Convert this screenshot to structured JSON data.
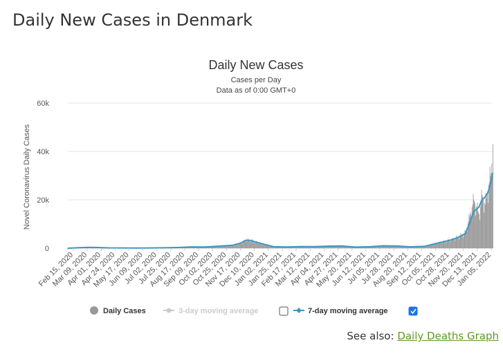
{
  "page": {
    "heading": "Daily New Cases in Denmark",
    "see_also_label": "See also:",
    "see_also_link": "Daily Deaths Graph",
    "link_color": "#5e9a1f"
  },
  "chart_data": {
    "type": "bar",
    "title": "Daily New Cases",
    "subtitle_1": "Cases per Day",
    "subtitle_2": "Data as of 0:00 GMT+0",
    "ylabel": "Novel Coronavirus Daily Cases",
    "xlabel": "",
    "ylim": [
      0,
      60000
    ],
    "y_ticks": [
      0,
      20000,
      40000,
      60000
    ],
    "y_tick_labels": [
      "0",
      "20k",
      "40k",
      "60k"
    ],
    "x_start": "2020-02-15",
    "x_end": "2022-01-28",
    "x_tick_labels": [
      "Feb 15, 2020",
      "Mar 09, 2020",
      "Apr 01, 2020",
      "Apr 24, 2020",
      "May 17, 2020",
      "Jun 09, 2020",
      "Jul 02, 2020",
      "Jul 25, 2020",
      "Aug 17, 2020",
      "Sep 09, 2020",
      "Oct 02, 2020",
      "Oct 25, 2020",
      "Nov 17, 2020",
      "Dec 10, 2020",
      "Jan 02, 2021",
      "Jan 25, 2021",
      "Feb 17, 2021",
      "Mar 12, 2021",
      "Apr 04, 2021",
      "Apr 27, 2021",
      "May 20, 2021",
      "Jun 12, 2021",
      "Jul 05, 2021",
      "Jul 28, 2021",
      "Aug 20, 2021",
      "Sep 12, 2021",
      "Oct 05, 2021",
      "Oct 28, 2021",
      "Nov 20, 2021",
      "Dec 13, 2021",
      "Jan 05, 2022"
    ],
    "grid": true,
    "legend_position": "bottom",
    "legend": [
      {
        "name": "Daily Cases",
        "color": "#999999",
        "marker": "circle",
        "active": true
      },
      {
        "name": "3-day moving average",
        "color": "#cccccc",
        "marker": "line-dot",
        "active": false,
        "checked": false
      },
      {
        "name": "7-day moving average",
        "color": "#3d96c3",
        "marker": "line-diamond",
        "active": true,
        "checked": true
      }
    ],
    "series": [
      {
        "name": "Daily Cases",
        "color": "#999999",
        "x": [
          "2020-02-15",
          "2020-03-09",
          "2020-03-20",
          "2020-04-01",
          "2020-04-24",
          "2020-05-17",
          "2020-06-09",
          "2020-07-02",
          "2020-07-25",
          "2020-08-17",
          "2020-09-09",
          "2020-10-02",
          "2020-10-25",
          "2020-11-17",
          "2020-12-01",
          "2020-12-10",
          "2020-12-18",
          "2021-01-02",
          "2021-01-25",
          "2021-02-17",
          "2021-03-12",
          "2021-04-04",
          "2021-04-27",
          "2021-05-20",
          "2021-06-12",
          "2021-07-05",
          "2021-07-28",
          "2021-08-20",
          "2021-09-12",
          "2021-10-05",
          "2021-10-28",
          "2021-11-20",
          "2021-12-01",
          "2021-12-13",
          "2021-12-20",
          "2021-12-27",
          "2022-01-05",
          "2022-01-10",
          "2022-01-15",
          "2022-01-20",
          "2022-01-25",
          "2022-01-28"
        ],
        "values": [
          0,
          300,
          400,
          300,
          150,
          120,
          60,
          100,
          180,
          300,
          600,
          450,
          900,
          1200,
          2000,
          3500,
          3400,
          2000,
          600,
          450,
          750,
          650,
          900,
          1000,
          400,
          600,
          1100,
          1000,
          550,
          800,
          2200,
          3600,
          4800,
          6500,
          13000,
          20000,
          14000,
          22000,
          18000,
          25000,
          31000,
          43000
        ]
      },
      {
        "name": "7-day moving average",
        "color": "#3d96c3",
        "x": [
          "2020-02-15",
          "2020-03-09",
          "2020-03-20",
          "2020-04-01",
          "2020-04-24",
          "2020-05-17",
          "2020-06-09",
          "2020-07-02",
          "2020-07-25",
          "2020-08-17",
          "2020-09-09",
          "2020-10-02",
          "2020-10-25",
          "2020-11-17",
          "2020-12-01",
          "2020-12-10",
          "2020-12-18",
          "2021-01-02",
          "2021-01-25",
          "2021-02-17",
          "2021-03-12",
          "2021-04-04",
          "2021-04-27",
          "2021-05-20",
          "2021-06-12",
          "2021-07-05",
          "2021-07-28",
          "2021-08-20",
          "2021-09-12",
          "2021-10-05",
          "2021-10-28",
          "2021-11-20",
          "2021-12-01",
          "2021-12-13",
          "2021-12-20",
          "2021-12-27",
          "2022-01-05",
          "2022-01-10",
          "2022-01-15",
          "2022-01-20",
          "2022-01-25",
          "2022-01-28"
        ],
        "values": [
          0,
          250,
          350,
          300,
          150,
          120,
          70,
          100,
          170,
          280,
          550,
          480,
          850,
          1200,
          2100,
          3300,
          3200,
          2100,
          650,
          480,
          700,
          650,
          850,
          950,
          450,
          600,
          1000,
          950,
          580,
          780,
          2100,
          3500,
          4500,
          6000,
          10000,
          15000,
          17000,
          20000,
          21000,
          23000,
          27000,
          31000
        ]
      }
    ]
  }
}
